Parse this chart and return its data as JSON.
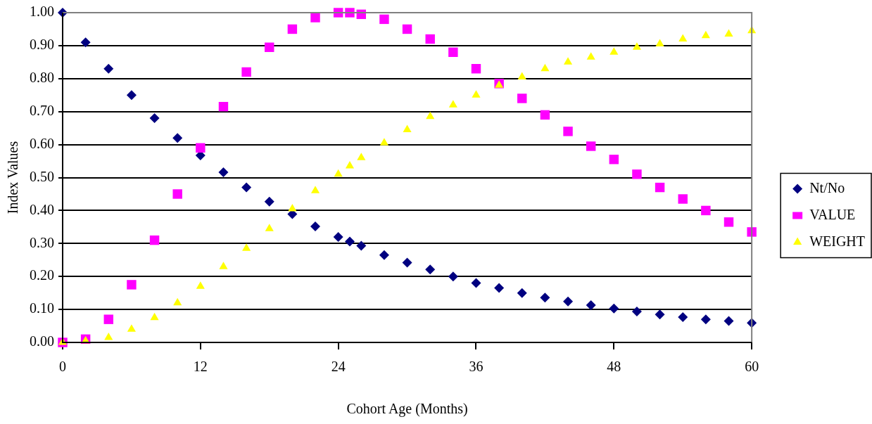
{
  "chart_data": {
    "type": "scatter",
    "xlabel": "Cohort Age (Months)",
    "ylabel": "Index Values",
    "x": [
      0,
      2,
      4,
      6,
      8,
      10,
      12,
      14,
      16,
      18,
      20,
      22,
      24,
      25,
      26,
      28,
      30,
      32,
      34,
      36,
      38,
      40,
      42,
      44,
      46,
      48,
      50,
      52,
      54,
      56,
      58,
      60
    ],
    "series": [
      {
        "name": "Nt/No",
        "color": "#000080",
        "marker": "diamond",
        "values": [
          1.0,
          0.91,
          0.83,
          0.75,
          0.68,
          0.62,
          0.567,
          0.516,
          0.47,
          0.427,
          0.389,
          0.352,
          0.32,
          0.306,
          0.293,
          0.265,
          0.242,
          0.221,
          0.2,
          0.18,
          0.165,
          0.15,
          0.136,
          0.124,
          0.113,
          0.103,
          0.094,
          0.085,
          0.077,
          0.07,
          0.065,
          0.059
        ]
      },
      {
        "name": "VALUE",
        "color": "#ff00ff",
        "marker": "square",
        "values": [
          0,
          0.01,
          0.07,
          0.175,
          0.31,
          0.45,
          0.59,
          0.715,
          0.82,
          0.895,
          0.95,
          0.985,
          1.0,
          1.0,
          0.995,
          0.98,
          0.95,
          0.92,
          0.88,
          0.83,
          0.785,
          0.74,
          0.69,
          0.64,
          0.595,
          0.555,
          0.51,
          0.47,
          0.435,
          0.4,
          0.365,
          0.335
        ]
      },
      {
        "name": "WEIGHT",
        "color": "#ffff00",
        "marker": "triangle",
        "values": [
          0,
          0.005,
          0.015,
          0.04,
          0.075,
          0.12,
          0.17,
          0.23,
          0.285,
          0.345,
          0.405,
          0.46,
          0.51,
          0.535,
          0.56,
          0.605,
          0.645,
          0.685,
          0.72,
          0.75,
          0.78,
          0.805,
          0.83,
          0.85,
          0.865,
          0.88,
          0.895,
          0.905,
          0.92,
          0.93,
          0.935,
          0.945
        ]
      }
    ],
    "xlim": [
      0,
      60
    ],
    "xticks": [
      0,
      12,
      24,
      36,
      48,
      60
    ],
    "ylim": [
      0,
      1
    ],
    "yticks": [
      {
        "value": 0,
        "label": "0.00"
      },
      {
        "value": 0.1,
        "label": "0.10"
      },
      {
        "value": 0.2,
        "label": "0.20"
      },
      {
        "value": 0.3,
        "label": "0.30"
      },
      {
        "value": 0.4,
        "label": "0.40"
      },
      {
        "value": 0.5,
        "label": "0.50"
      },
      {
        "value": 0.6,
        "label": "0.60"
      },
      {
        "value": 0.7,
        "label": "0.70"
      },
      {
        "value": 0.8,
        "label": "0.80"
      },
      {
        "value": 0.9,
        "label": "0.90"
      },
      {
        "value": 1,
        "label": "1.00"
      }
    ],
    "grid": "y",
    "legend": "right"
  }
}
